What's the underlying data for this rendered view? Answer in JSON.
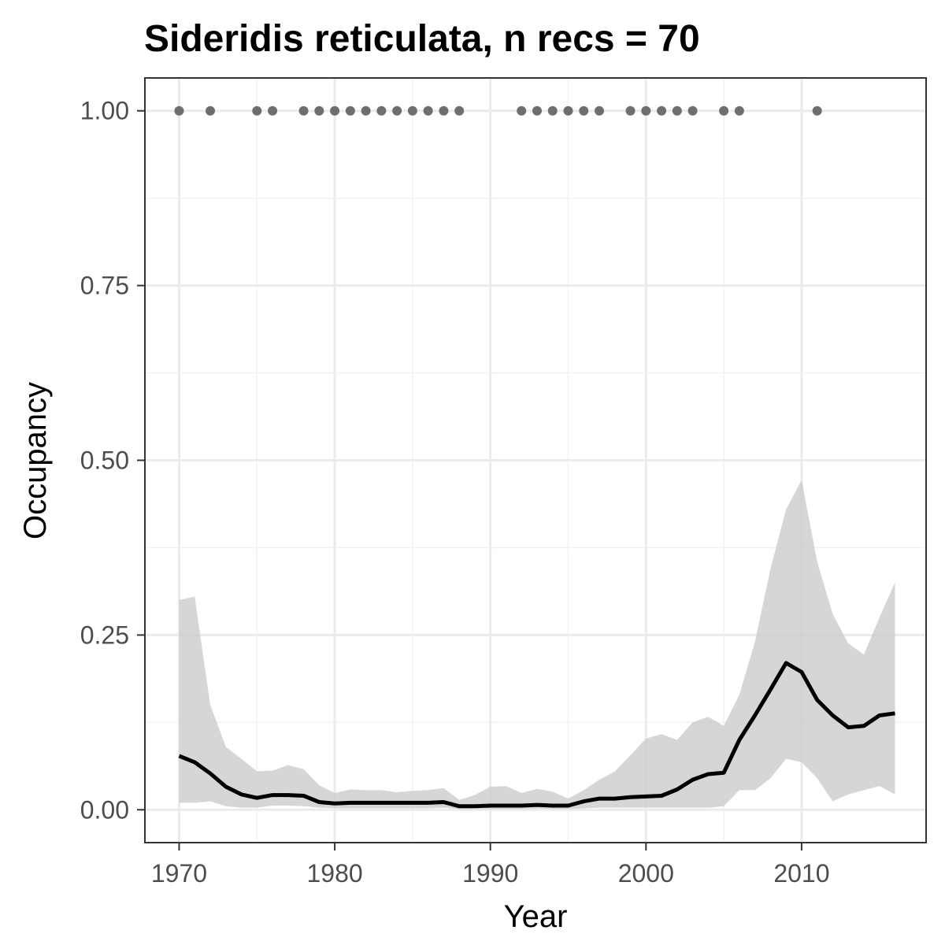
{
  "chart_data": {
    "type": "line",
    "title": "Sideridis reticulata, n recs = 70",
    "xlabel": "Year",
    "ylabel": "Occupancy",
    "xlim": [
      1967.8,
      2018
    ],
    "ylim": [
      -0.047,
      1.047
    ],
    "xticks": [
      1970,
      1980,
      1990,
      2000,
      2010
    ],
    "yticks": [
      0.0,
      0.25,
      0.5,
      0.75,
      1.0
    ],
    "ytick_labels": [
      "0.00",
      "0.25",
      "0.50",
      "0.75",
      "1.00"
    ],
    "grid": true,
    "legend": "none",
    "series": [
      {
        "type": "line",
        "x": [
          1970,
          1971,
          1972,
          1973,
          1974,
          1975,
          1976,
          1977,
          1978,
          1979,
          1980,
          1981,
          1982,
          1983,
          1984,
          1985,
          1986,
          1987,
          1988,
          1989,
          1990,
          1991,
          1992,
          1993,
          1994,
          1995,
          1996,
          1997,
          1998,
          1999,
          2000,
          2001,
          2002,
          2003,
          2004,
          2005,
          2006,
          2007,
          2008,
          2009,
          2010,
          2011,
          2012,
          2013,
          2014,
          2015,
          2016
        ],
        "y": [
          0.077,
          0.068,
          0.052,
          0.033,
          0.022,
          0.017,
          0.021,
          0.021,
          0.02,
          0.011,
          0.009,
          0.01,
          0.01,
          0.01,
          0.01,
          0.01,
          0.01,
          0.011,
          0.005,
          0.005,
          0.006,
          0.006,
          0.006,
          0.007,
          0.006,
          0.006,
          0.012,
          0.016,
          0.016,
          0.018,
          0.019,
          0.02,
          0.029,
          0.043,
          0.051,
          0.053,
          0.1,
          0.135,
          0.172,
          0.21,
          0.197,
          0.157,
          0.135,
          0.118,
          0.12,
          0.135,
          0.138
        ]
      },
      {
        "type": "ribbon",
        "x": [
          1970,
          1971,
          1972,
          1973,
          1974,
          1975,
          1976,
          1977,
          1978,
          1979,
          1980,
          1981,
          1982,
          1983,
          1984,
          1985,
          1986,
          1987,
          1988,
          1989,
          1990,
          1991,
          1992,
          1993,
          1994,
          1995,
          1996,
          1997,
          1998,
          1999,
          2000,
          2001,
          2002,
          2003,
          2004,
          2005,
          2006,
          2007,
          2008,
          2009,
          2010,
          2011,
          2012,
          2013,
          2014,
          2015,
          2016
        ],
        "lower": [
          0.01,
          0.01,
          0.012,
          0.005,
          0.003,
          0.003,
          0.006,
          0.006,
          0.005,
          0.003,
          0.002,
          0.002,
          0.002,
          0.002,
          0.002,
          0.002,
          0.002,
          0.003,
          0.001,
          0.001,
          0.001,
          0.001,
          0.001,
          0.002,
          0.001,
          0.001,
          0.002,
          0.003,
          0.003,
          0.003,
          0.003,
          0.003,
          0.003,
          0.003,
          0.003,
          0.005,
          0.028,
          0.028,
          0.045,
          0.073,
          0.068,
          0.045,
          0.012,
          0.022,
          0.028,
          0.034,
          0.022
        ],
        "upper": [
          0.3,
          0.305,
          0.15,
          0.09,
          0.073,
          0.055,
          0.056,
          0.064,
          0.058,
          0.035,
          0.024,
          0.029,
          0.028,
          0.028,
          0.025,
          0.027,
          0.028,
          0.031,
          0.014,
          0.021,
          0.033,
          0.034,
          0.024,
          0.03,
          0.026,
          0.016,
          0.028,
          0.043,
          0.055,
          0.078,
          0.102,
          0.108,
          0.1,
          0.125,
          0.133,
          0.12,
          0.165,
          0.24,
          0.345,
          0.43,
          0.472,
          0.355,
          0.28,
          0.238,
          0.222,
          0.275,
          0.325
        ]
      },
      {
        "type": "scatter",
        "x": [
          1970,
          1972,
          1975,
          1976,
          1978,
          1979,
          1980,
          1981,
          1982,
          1983,
          1984,
          1985,
          1986,
          1987,
          1988,
          1992,
          1993,
          1994,
          1995,
          1996,
          1997,
          1999,
          2000,
          2001,
          2002,
          2003,
          2005,
          2006,
          2011
        ],
        "y": [
          1,
          1,
          1,
          1,
          1,
          1,
          1,
          1,
          1,
          1,
          1,
          1,
          1,
          1,
          1,
          1,
          1,
          1,
          1,
          1,
          1,
          1,
          1,
          1,
          1,
          1,
          1,
          1,
          1
        ]
      }
    ]
  }
}
